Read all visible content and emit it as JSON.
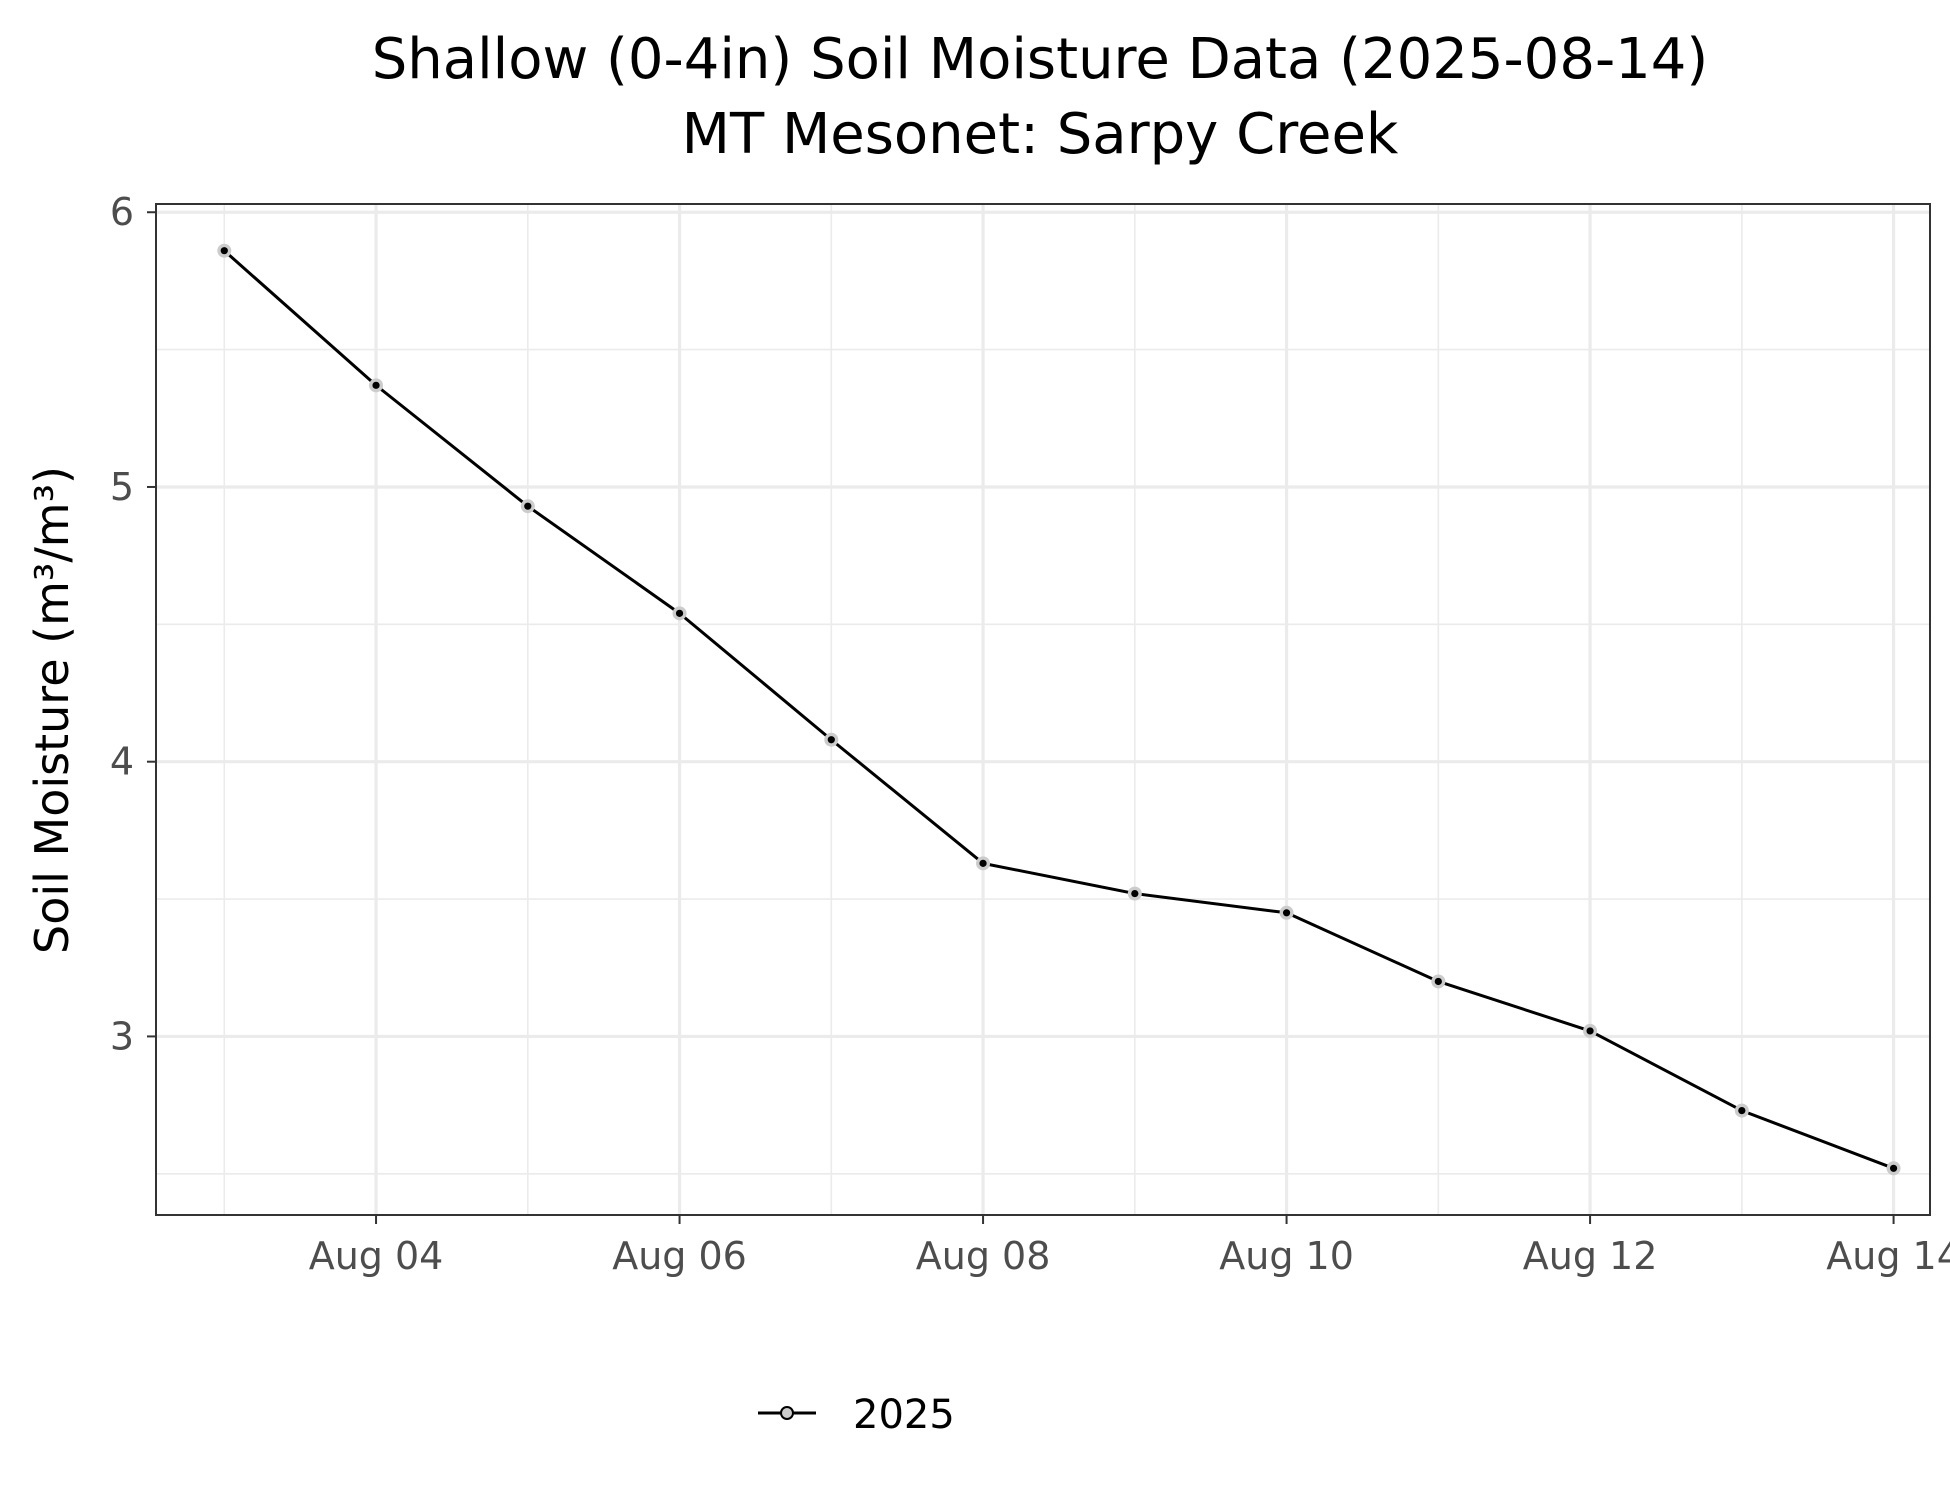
{
  "chart_data": {
    "type": "line",
    "title": "Shallow (0-4in) Soil Moisture Data (2025-08-14)",
    "subtitle": "MT Mesonet: Sarpy Creek",
    "xlabel": "",
    "ylabel": "Soil Moisture (m³/m³)",
    "x_tick_labels": [
      "Aug 04",
      "Aug 06",
      "Aug 08",
      "Aug 10",
      "Aug 12",
      "Aug 14"
    ],
    "x_tick_dates": [
      "2025-08-04",
      "2025-08-06",
      "2025-08-08",
      "2025-08-10",
      "2025-08-12",
      "2025-08-14"
    ],
    "y_ticks": [
      3,
      4,
      5,
      6
    ],
    "ylim": [
      2.35,
      6.03
    ],
    "xlim": [
      "2025-08-02",
      "2025-08-14"
    ],
    "grid": true,
    "legend_position": "bottom",
    "series": [
      {
        "name": "2025",
        "color": "#000000",
        "marker_fill": "#cccccc",
        "x": [
          "2025-08-03",
          "2025-08-04",
          "2025-08-05",
          "2025-08-06",
          "2025-08-07",
          "2025-08-08",
          "2025-08-09",
          "2025-08-10",
          "2025-08-11",
          "2025-08-12",
          "2025-08-13",
          "2025-08-14"
        ],
        "values": [
          5.86,
          5.37,
          4.93,
          4.54,
          4.08,
          3.63,
          3.52,
          3.45,
          3.2,
          3.02,
          2.73,
          2.52
        ]
      }
    ]
  }
}
